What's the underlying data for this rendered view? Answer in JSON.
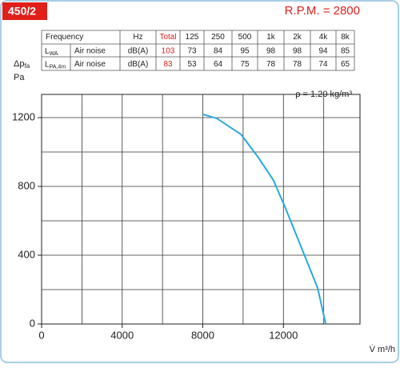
{
  "header": {
    "model": "450/2",
    "rpm": "R.P.M. = 2800"
  },
  "table": {
    "columns": [
      "Frequency",
      "Hz",
      "Total",
      "125",
      "250",
      "500",
      "1k",
      "2k",
      "4k",
      "8k"
    ],
    "rows": [
      {
        "symbol": "L",
        "sub": "WA",
        "label": "Air noise",
        "unit": "dB(A)",
        "total": 103,
        "values": [
          73,
          84,
          95,
          98,
          98,
          94,
          85
        ]
      },
      {
        "symbol": "L",
        "sub": "PA,4m",
        "label": "Air noise",
        "unit": "dB(A)",
        "total": 83,
        "values": [
          53,
          64,
          75,
          78,
          78,
          74,
          65
        ]
      }
    ],
    "total_color": "#e0201b"
  },
  "chart_data": {
    "type": "line",
    "annotation": "ρ = 1.20 kg/m³",
    "xlabel": "V̇ m³/h",
    "ylabel": "Δp",
    "ylabel_sub": "fa",
    "yunit": "Pa",
    "x": [
      8000,
      8700,
      9900,
      10700,
      11500,
      12100,
      12900,
      13700,
      14100
    ],
    "series": [
      {
        "color": "#29a9df",
        "values": [
          1219,
          1195,
          1102,
          977,
          837,
          674,
          442,
          209,
          0
        ]
      }
    ],
    "xlim": [
      0,
      15800
    ],
    "ylim": [
      0,
      1335
    ],
    "xticks": [
      0,
      4000,
      8000,
      12000
    ],
    "yticks": [
      0,
      400,
      800,
      1200
    ],
    "xgrid_step": 2000,
    "ygrid_step": 200,
    "grid": true
  }
}
